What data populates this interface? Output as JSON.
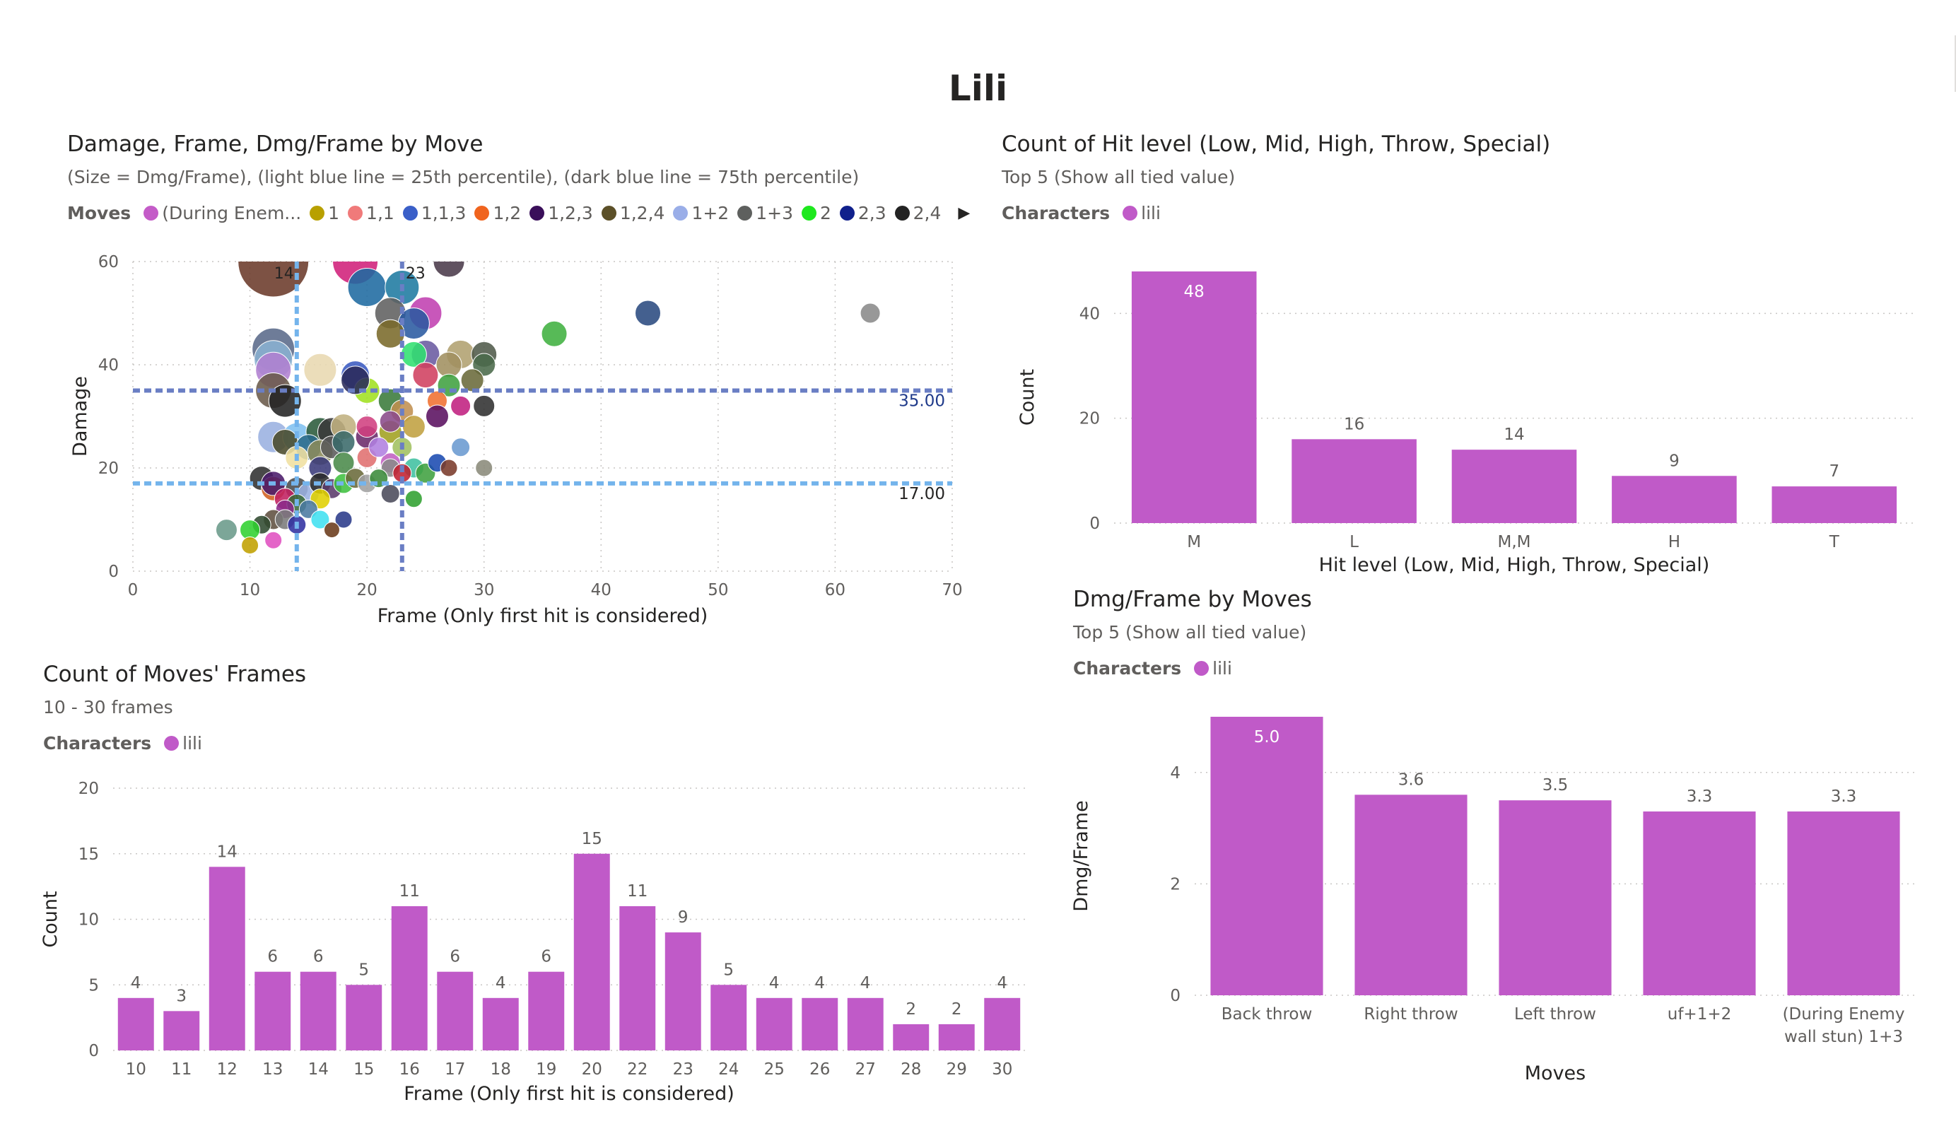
{
  "page": {
    "title": "Lili"
  },
  "scatter": {
    "title": "Damage, Frame, Dmg/Frame by Move",
    "subtitle": "(Size = Dmg/Frame), (light blue line = 25th percentile), (dark blue line = 75th percentile)",
    "legend_title": "Moves",
    "legend_items": [
      {
        "label": "(During Enem...",
        "color": "#c45cc8"
      },
      {
        "label": "1",
        "color": "#b8a000"
      },
      {
        "label": "1,1",
        "color": "#f07a7a"
      },
      {
        "label": "1,1,3",
        "color": "#3a5fc8"
      },
      {
        "label": "1,2",
        "color": "#f0641e"
      },
      {
        "label": "1,2,3",
        "color": "#3a0f5a"
      },
      {
        "label": "1,2,4",
        "color": "#5c5028"
      },
      {
        "label": "1+2",
        "color": "#9aaee8"
      },
      {
        "label": "1+3",
        "color": "#5e605e"
      },
      {
        "label": "2",
        "color": "#1ee81e"
      },
      {
        "label": "2,3",
        "color": "#10208c"
      },
      {
        "label": "2,4",
        "color": "#232323"
      }
    ],
    "legend_more": "▶",
    "ref_labels": {
      "damage_p75": "35.00",
      "damage_p25": "17.00",
      "frame_p25": "14",
      "frame_p75": "23"
    },
    "colors": {
      "p25_line": "#74b4ec",
      "p75_line": "#6a7ec4"
    }
  },
  "hitlevel": {
    "title": "Count of Hit level (Low, Mid, High, Throw, Special)",
    "subtitle": "Top 5 (Show all tied value)",
    "legend_title": "Characters",
    "legend_label": "lili"
  },
  "frames": {
    "title": "Count of Moves' Frames",
    "subtitle": "10 - 30 frames",
    "legend_title": "Characters",
    "legend_label": "lili"
  },
  "dmgframe": {
    "title": "Dmg/Frame by Moves",
    "subtitle": "Top 5 (Show all tied value)",
    "legend_title": "Characters",
    "legend_label": "lili"
  },
  "colors": {
    "bar": "#c05ac8",
    "grid": "#c8c6c4",
    "axis_text": "#605e5c"
  },
  "chart_data": [
    {
      "type": "scatter",
      "title": "Damage, Frame, Dmg/Frame by Move",
      "xlabel": "Frame (Only first hit is considered)",
      "ylabel": "Damage",
      "xlim": [
        0,
        70
      ],
      "ylim": [
        0,
        60
      ],
      "xticks": [
        0,
        10,
        20,
        30,
        40,
        50,
        60,
        70
      ],
      "yticks": [
        0,
        20,
        40,
        60
      ],
      "reference_lines": {
        "damage_p75": 35,
        "damage_p25": 17,
        "frame_p25": 14,
        "frame_p75": 23
      },
      "points": [
        {
          "x": 12,
          "y": 60,
          "s": 5.0,
          "c": "#6b3a2a"
        },
        {
          "x": 19,
          "y": 60,
          "s": 3.2,
          "c": "#d0207a"
        },
        {
          "x": 27,
          "y": 60,
          "s": 2.2,
          "c": "#4a3a4a"
        },
        {
          "x": 20,
          "y": 55,
          "s": 2.7,
          "c": "#1e6aa0"
        },
        {
          "x": 23,
          "y": 55,
          "s": 2.4,
          "c": "#1e7aa0"
        },
        {
          "x": 25,
          "y": 50,
          "s": 2.3,
          "c": "#c040b0"
        },
        {
          "x": 22,
          "y": 50,
          "s": 2.2,
          "c": "#606060"
        },
        {
          "x": 24,
          "y": 48,
          "s": 2.2,
          "c": "#2a5aa0"
        },
        {
          "x": 22,
          "y": 46,
          "s": 2.0,
          "c": "#7a6a2a"
        },
        {
          "x": 44,
          "y": 50,
          "s": 1.8,
          "c": "#2a4a80"
        },
        {
          "x": 63,
          "y": 50,
          "s": 1.4,
          "c": "#8a8a8a"
        },
        {
          "x": 36,
          "y": 46,
          "s": 1.8,
          "c": "#40b040"
        },
        {
          "x": 12,
          "y": 43,
          "s": 3.0,
          "c": "#5a6a8a"
        },
        {
          "x": 12,
          "y": 41,
          "s": 2.7,
          "c": "#8ab0d0"
        },
        {
          "x": 12,
          "y": 39,
          "s": 2.5,
          "c": "#b080d0"
        },
        {
          "x": 16,
          "y": 39,
          "s": 2.3,
          "c": "#e8d8b0"
        },
        {
          "x": 19,
          "y": 38,
          "s": 2.0,
          "c": "#3a5ac0"
        },
        {
          "x": 12,
          "y": 35,
          "s": 2.5,
          "c": "#6a5a4a"
        },
        {
          "x": 13,
          "y": 33,
          "s": 2.3,
          "c": "#232323"
        },
        {
          "x": 20,
          "y": 35,
          "s": 1.8,
          "c": "#a0e020"
        },
        {
          "x": 19,
          "y": 37,
          "s": 2.0,
          "c": "#2a2a5a"
        },
        {
          "x": 25,
          "y": 42,
          "s": 2.0,
          "c": "#6a5aa0"
        },
        {
          "x": 24,
          "y": 42,
          "s": 1.8,
          "c": "#30e070"
        },
        {
          "x": 28,
          "y": 42,
          "s": 2.0,
          "c": "#b0a070"
        },
        {
          "x": 30,
          "y": 42,
          "s": 1.8,
          "c": "#505a4a"
        },
        {
          "x": 27,
          "y": 40,
          "s": 1.8,
          "c": "#a09060"
        },
        {
          "x": 30,
          "y": 40,
          "s": 1.6,
          "c": "#4a6a4a"
        },
        {
          "x": 25,
          "y": 38,
          "s": 1.8,
          "c": "#d04060"
        },
        {
          "x": 27,
          "y": 36,
          "s": 1.6,
          "c": "#40a040"
        },
        {
          "x": 29,
          "y": 37,
          "s": 1.6,
          "c": "#6a6a3a"
        },
        {
          "x": 22,
          "y": 33,
          "s": 1.7,
          "c": "#3a7a3a"
        },
        {
          "x": 23,
          "y": 31,
          "s": 1.6,
          "c": "#c09050"
        },
        {
          "x": 26,
          "y": 33,
          "s": 1.4,
          "c": "#f07030"
        },
        {
          "x": 28,
          "y": 32,
          "s": 1.4,
          "c": "#c02080"
        },
        {
          "x": 30,
          "y": 32,
          "s": 1.5,
          "c": "#303030"
        },
        {
          "x": 26,
          "y": 30,
          "s": 1.6,
          "c": "#5a1060"
        },
        {
          "x": 12,
          "y": 26,
          "s": 2.2,
          "c": "#9ab0e0"
        },
        {
          "x": 14,
          "y": 26,
          "s": 2.0,
          "c": "#80c0f0"
        },
        {
          "x": 16,
          "y": 27,
          "s": 2.0,
          "c": "#2a5a3a"
        },
        {
          "x": 17,
          "y": 27,
          "s": 2.0,
          "c": "#3a3a3a"
        },
        {
          "x": 18,
          "y": 28,
          "s": 1.8,
          "c": "#c0b080"
        },
        {
          "x": 13,
          "y": 25,
          "s": 1.8,
          "c": "#4a4a2a"
        },
        {
          "x": 15,
          "y": 24,
          "s": 1.8,
          "c": "#2a6a8a"
        },
        {
          "x": 16,
          "y": 23,
          "s": 1.8,
          "c": "#8a8a5a"
        },
        {
          "x": 17,
          "y": 24,
          "s": 1.6,
          "c": "#5a5a5a"
        },
        {
          "x": 18,
          "y": 25,
          "s": 1.6,
          "c": "#3a6a6a"
        },
        {
          "x": 20,
          "y": 26,
          "s": 1.6,
          "c": "#6a2a6a"
        },
        {
          "x": 22,
          "y": 27,
          "s": 1.6,
          "c": "#a0a020"
        },
        {
          "x": 24,
          "y": 28,
          "s": 1.6,
          "c": "#c0a040"
        },
        {
          "x": 20,
          "y": 28,
          "s": 1.5,
          "c": "#d04080"
        },
        {
          "x": 22,
          "y": 29,
          "s": 1.5,
          "c": "#8a4a8a"
        },
        {
          "x": 14,
          "y": 22,
          "s": 1.6,
          "c": "#f0e0a0"
        },
        {
          "x": 16,
          "y": 20,
          "s": 1.6,
          "c": "#3a3a7a"
        },
        {
          "x": 18,
          "y": 21,
          "s": 1.5,
          "c": "#4a8a4a"
        },
        {
          "x": 20,
          "y": 22,
          "s": 1.4,
          "c": "#e07070"
        },
        {
          "x": 22,
          "y": 21,
          "s": 1.4,
          "c": "#c060c0"
        },
        {
          "x": 21,
          "y": 24,
          "s": 1.4,
          "c": "#b080e0"
        },
        {
          "x": 23,
          "y": 24,
          "s": 1.4,
          "c": "#a0c060"
        },
        {
          "x": 24,
          "y": 20,
          "s": 1.4,
          "c": "#40c0a0"
        },
        {
          "x": 25,
          "y": 19,
          "s": 1.4,
          "c": "#40a040"
        },
        {
          "x": 22,
          "y": 20,
          "s": 1.3,
          "c": "#8a8a8a"
        },
        {
          "x": 23,
          "y": 19,
          "s": 1.3,
          "c": "#c02030"
        },
        {
          "x": 26,
          "y": 21,
          "s": 1.3,
          "c": "#1a4ab0"
        },
        {
          "x": 27,
          "y": 20,
          "s": 1.2,
          "c": "#7a3a2a"
        },
        {
          "x": 28,
          "y": 24,
          "s": 1.3,
          "c": "#6a9ad0"
        },
        {
          "x": 30,
          "y": 20,
          "s": 1.2,
          "c": "#8a8a7a"
        },
        {
          "x": 11,
          "y": 18,
          "s": 1.7,
          "c": "#303030"
        },
        {
          "x": 12,
          "y": 16,
          "s": 1.7,
          "c": "#d06020"
        },
        {
          "x": 12,
          "y": 17,
          "s": 1.7,
          "c": "#4a1a6a"
        },
        {
          "x": 14,
          "y": 16,
          "s": 1.6,
          "c": "#4a4a4a"
        },
        {
          "x": 15,
          "y": 15,
          "s": 1.5,
          "c": "#9ab0e0"
        },
        {
          "x": 16,
          "y": 17,
          "s": 1.5,
          "c": "#2a2a2a"
        },
        {
          "x": 17,
          "y": 16,
          "s": 1.4,
          "c": "#5a3a6a"
        },
        {
          "x": 18,
          "y": 17,
          "s": 1.4,
          "c": "#40c040"
        },
        {
          "x": 19,
          "y": 18,
          "s": 1.4,
          "c": "#6a6a3a"
        },
        {
          "x": 20,
          "y": 17,
          "s": 1.3,
          "c": "#a0a0a0"
        },
        {
          "x": 21,
          "y": 18,
          "s": 1.3,
          "c": "#3a8a3a"
        },
        {
          "x": 13,
          "y": 14,
          "s": 1.5,
          "c": "#c02060"
        },
        {
          "x": 14,
          "y": 13,
          "s": 1.4,
          "c": "#3a6a3a"
        },
        {
          "x": 16,
          "y": 14,
          "s": 1.4,
          "c": "#e0d000"
        },
        {
          "x": 13,
          "y": 12,
          "s": 1.3,
          "c": "#8a2a8a"
        },
        {
          "x": 15,
          "y": 12,
          "s": 1.3,
          "c": "#4a7aa0"
        },
        {
          "x": 22,
          "y": 15,
          "s": 1.3,
          "c": "#4a4a5a"
        },
        {
          "x": 24,
          "y": 14,
          "s": 1.2,
          "c": "#30a030"
        },
        {
          "x": 12,
          "y": 10,
          "s": 1.4,
          "c": "#605040"
        },
        {
          "x": 13,
          "y": 10,
          "s": 1.4,
          "c": "#7a7a7a"
        },
        {
          "x": 11,
          "y": 9,
          "s": 1.3,
          "c": "#304a30"
        },
        {
          "x": 14,
          "y": 9,
          "s": 1.3,
          "c": "#3030a0"
        },
        {
          "x": 16,
          "y": 10,
          "s": 1.3,
          "c": "#40e0f0"
        },
        {
          "x": 18,
          "y": 10,
          "s": 1.2,
          "c": "#2a3a8a"
        },
        {
          "x": 17,
          "y": 8,
          "s": 1.1,
          "c": "#6a3a1a"
        },
        {
          "x": 8,
          "y": 8,
          "s": 1.5,
          "c": "#6a9a8a"
        },
        {
          "x": 10,
          "y": 8,
          "s": 1.4,
          "c": "#30d030"
        },
        {
          "x": 10,
          "y": 5,
          "s": 1.2,
          "c": "#c0a000"
        },
        {
          "x": 12,
          "y": 6,
          "s": 1.2,
          "c": "#e050c0"
        }
      ]
    },
    {
      "type": "bar",
      "title": "Count of Hit level (Low, Mid, High, Throw, Special)",
      "xlabel": "Hit level (Low, Mid, High, Throw, Special)",
      "ylabel": "Count",
      "ylim": [
        0,
        48
      ],
      "yticks": [
        0,
        20,
        40
      ],
      "categories": [
        "M",
        "L",
        "M,M",
        "H",
        "T"
      ],
      "values": [
        48,
        16,
        14,
        9,
        7
      ],
      "data_labels": [
        "48",
        "16",
        "14",
        "9",
        "7"
      ]
    },
    {
      "type": "bar",
      "title": "Count of Moves' Frames",
      "xlabel": "Frame (Only first hit is considered)",
      "ylabel": "Count",
      "ylim": [
        0,
        20
      ],
      "yticks": [
        0,
        5,
        10,
        15,
        20
      ],
      "categories": [
        "10",
        "11",
        "12",
        "13",
        "14",
        "15",
        "16",
        "17",
        "18",
        "19",
        "20",
        "22",
        "23",
        "24",
        "25",
        "26",
        "27",
        "28",
        "29",
        "30"
      ],
      "values": [
        4,
        3,
        14,
        6,
        6,
        5,
        11,
        6,
        4,
        6,
        15,
        11,
        9,
        5,
        4,
        4,
        4,
        2,
        2,
        4
      ],
      "data_labels": [
        "4",
        "3",
        "14",
        "6",
        "6",
        "5",
        "11",
        "6",
        "4",
        "6",
        "15",
        "11",
        "9",
        "5",
        "4",
        "4",
        "4",
        "2",
        "2",
        "4"
      ]
    },
    {
      "type": "bar",
      "title": "Dmg/Frame by Moves",
      "xlabel": "Moves",
      "ylabel": "Dmg/Frame",
      "ylim": [
        0,
        5
      ],
      "yticks": [
        0,
        2,
        4
      ],
      "categories": [
        [
          "Back throw"
        ],
        [
          "Right throw"
        ],
        [
          "Left throw"
        ],
        [
          "uf+1+2"
        ],
        [
          "(During Enemy",
          "wall stun) 1+3"
        ]
      ],
      "values": [
        5.0,
        3.6,
        3.5,
        3.3,
        3.3
      ],
      "data_labels": [
        "5.0",
        "3.6",
        "3.5",
        "3.3",
        "3.3"
      ]
    }
  ]
}
